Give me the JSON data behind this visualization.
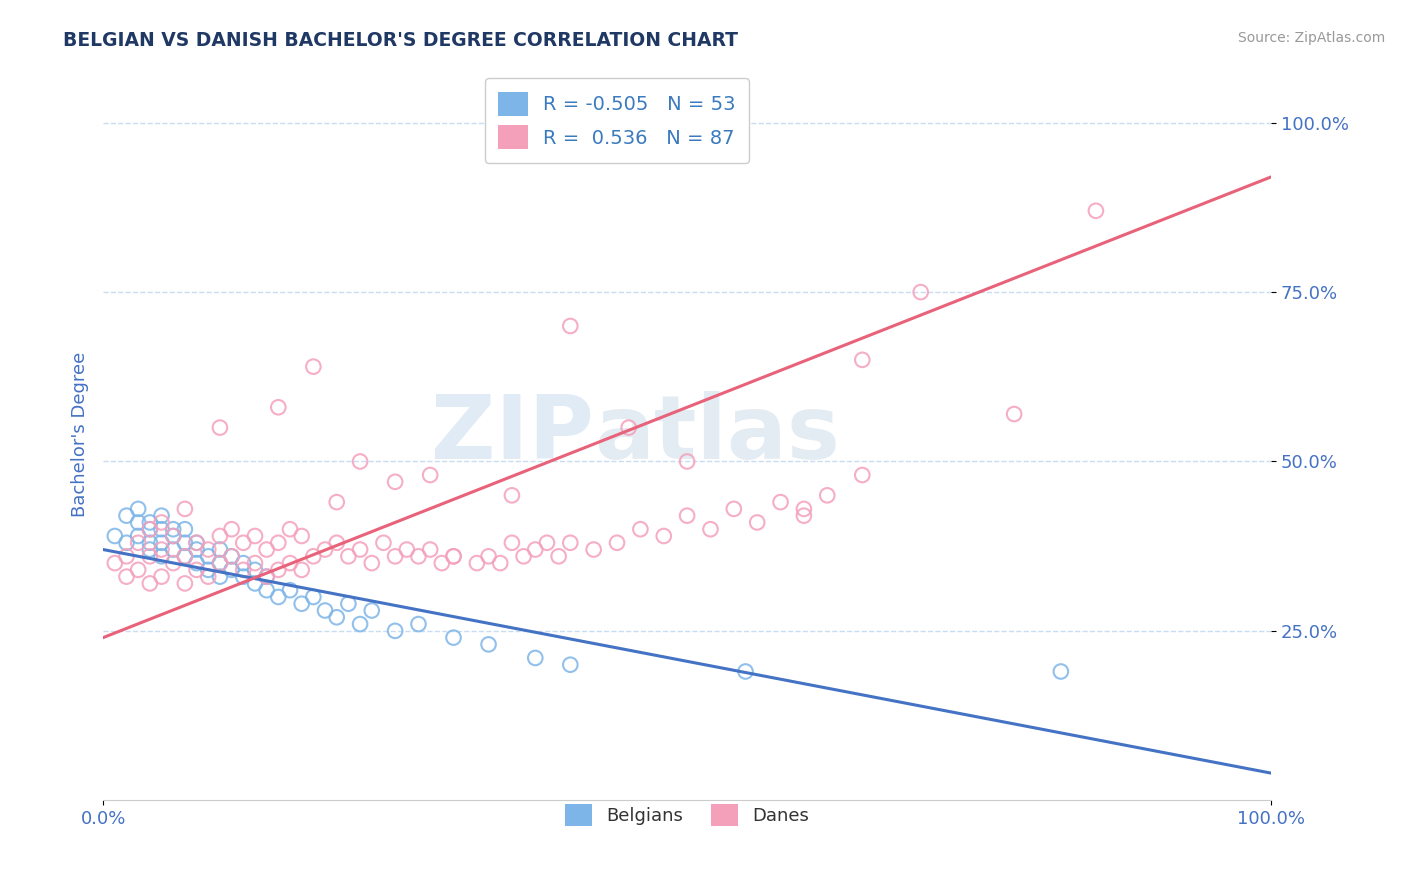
{
  "title": "BELGIAN VS DANISH BACHELOR'S DEGREE CORRELATION CHART",
  "source": "Source: ZipAtlas.com",
  "ylabel": "Bachelor's Degree",
  "xlim": [
    0.0,
    1.0
  ],
  "ylim": [
    0.0,
    1.08
  ],
  "y_ticks": [
    0.25,
    0.5,
    0.75,
    1.0
  ],
  "x_ticks": [
    0.0,
    1.0
  ],
  "legend_labels_bottom": [
    "Belgians",
    "Danes"
  ],
  "belgian_color": "#7eb5e8",
  "danish_color": "#f4a0bb",
  "belgian_line_color": "#4472c4",
  "danish_line_color": "#e8627a",
  "title_color": "#1f3864",
  "axis_label_color": "#4472c4",
  "tick_label_color": "#4472c4",
  "watermark_zip": "ZIP",
  "watermark_atlas": "atlas",
  "background_color": "#ffffff",
  "grid_color": "#c8ddf0",
  "r_belgian": -0.505,
  "n_belgian": 53,
  "r_danish": 0.536,
  "n_danish": 87,
  "belgian_line_x0": 0.0,
  "belgian_line_y0": 0.37,
  "belgian_line_x1": 1.0,
  "belgian_line_y1": 0.04,
  "danish_line_x0": 0.0,
  "danish_line_y0": 0.24,
  "danish_line_x1": 1.0,
  "danish_line_y1": 0.92,
  "belgian_scatter_x": [
    0.01,
    0.02,
    0.02,
    0.03,
    0.03,
    0.03,
    0.04,
    0.04,
    0.04,
    0.04,
    0.05,
    0.05,
    0.05,
    0.05,
    0.06,
    0.06,
    0.06,
    0.07,
    0.07,
    0.07,
    0.08,
    0.08,
    0.08,
    0.09,
    0.09,
    0.1,
    0.1,
    0.1,
    0.11,
    0.11,
    0.12,
    0.12,
    0.13,
    0.13,
    0.14,
    0.14,
    0.15,
    0.16,
    0.17,
    0.18,
    0.19,
    0.2,
    0.21,
    0.22,
    0.23,
    0.25,
    0.27,
    0.3,
    0.33,
    0.37,
    0.4,
    0.55,
    0.82
  ],
  "belgian_scatter_y": [
    0.39,
    0.42,
    0.38,
    0.41,
    0.39,
    0.43,
    0.4,
    0.37,
    0.41,
    0.38,
    0.4,
    0.38,
    0.42,
    0.36,
    0.39,
    0.37,
    0.4,
    0.38,
    0.36,
    0.4,
    0.37,
    0.35,
    0.38,
    0.36,
    0.34,
    0.35,
    0.33,
    0.37,
    0.34,
    0.36,
    0.33,
    0.35,
    0.32,
    0.34,
    0.31,
    0.33,
    0.3,
    0.31,
    0.29,
    0.3,
    0.28,
    0.27,
    0.29,
    0.26,
    0.28,
    0.25,
    0.26,
    0.24,
    0.23,
    0.21,
    0.2,
    0.19,
    0.19
  ],
  "danish_scatter_x": [
    0.01,
    0.02,
    0.02,
    0.03,
    0.03,
    0.04,
    0.04,
    0.04,
    0.05,
    0.05,
    0.05,
    0.06,
    0.06,
    0.07,
    0.07,
    0.07,
    0.08,
    0.08,
    0.09,
    0.09,
    0.1,
    0.1,
    0.11,
    0.11,
    0.12,
    0.12,
    0.13,
    0.13,
    0.14,
    0.14,
    0.15,
    0.15,
    0.16,
    0.16,
    0.17,
    0.17,
    0.18,
    0.19,
    0.2,
    0.21,
    0.22,
    0.23,
    0.24,
    0.25,
    0.26,
    0.27,
    0.28,
    0.29,
    0.3,
    0.32,
    0.33,
    0.34,
    0.35,
    0.36,
    0.37,
    0.38,
    0.39,
    0.4,
    0.42,
    0.44,
    0.46,
    0.48,
    0.5,
    0.52,
    0.54,
    0.56,
    0.58,
    0.6,
    0.62,
    0.65,
    0.1,
    0.15,
    0.18,
    0.2,
    0.22,
    0.25,
    0.28,
    0.3,
    0.35,
    0.4,
    0.45,
    0.5,
    0.6,
    0.65,
    0.7,
    0.78,
    0.85
  ],
  "danish_scatter_y": [
    0.35,
    0.36,
    0.33,
    0.34,
    0.38,
    0.32,
    0.36,
    0.4,
    0.33,
    0.37,
    0.41,
    0.35,
    0.39,
    0.32,
    0.36,
    0.43,
    0.34,
    0.38,
    0.33,
    0.37,
    0.35,
    0.39,
    0.36,
    0.4,
    0.34,
    0.38,
    0.35,
    0.39,
    0.33,
    0.37,
    0.34,
    0.38,
    0.35,
    0.4,
    0.34,
    0.39,
    0.36,
    0.37,
    0.38,
    0.36,
    0.37,
    0.35,
    0.38,
    0.36,
    0.37,
    0.36,
    0.37,
    0.35,
    0.36,
    0.35,
    0.36,
    0.35,
    0.38,
    0.36,
    0.37,
    0.38,
    0.36,
    0.38,
    0.37,
    0.38,
    0.4,
    0.39,
    0.42,
    0.4,
    0.43,
    0.41,
    0.44,
    0.43,
    0.45,
    0.48,
    0.55,
    0.58,
    0.64,
    0.44,
    0.5,
    0.47,
    0.48,
    0.36,
    0.45,
    0.7,
    0.55,
    0.5,
    0.42,
    0.65,
    0.75,
    0.57,
    0.87
  ]
}
